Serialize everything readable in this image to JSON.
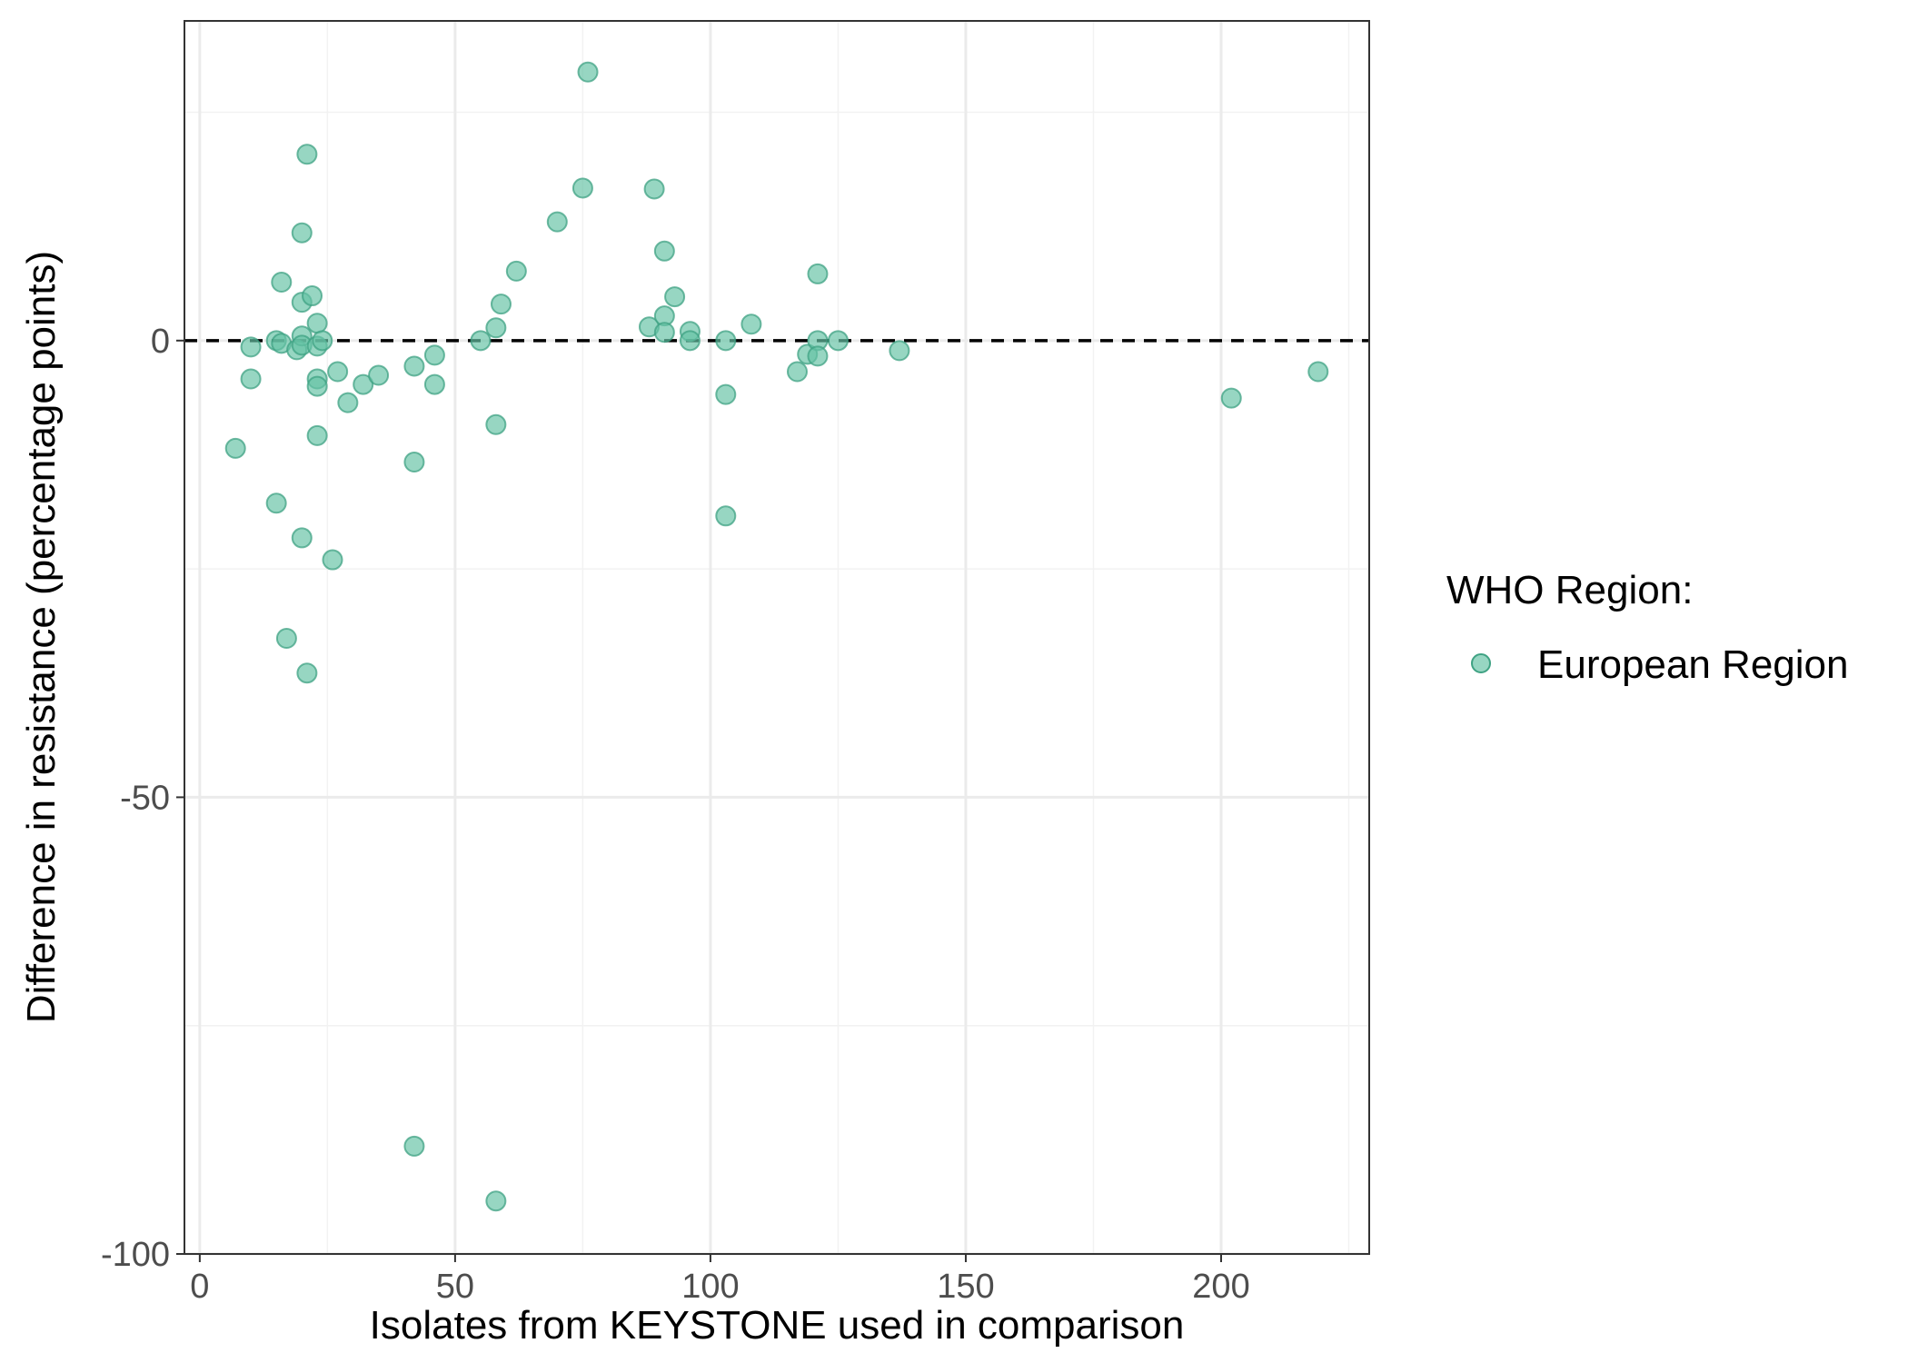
{
  "chart_data": {
    "type": "scatter",
    "xlabel": "Isolates from KEYSTONE used in comparison",
    "ylabel": "Difference in resistance (percentage points)",
    "xlim": [
      -3,
      229
    ],
    "ylim": [
      -100,
      35
    ],
    "x_ticks": [
      0,
      50,
      100,
      150,
      200
    ],
    "y_ticks": [
      0,
      -50,
      -100
    ],
    "x_tick_labels": [
      "0",
      "50",
      "100",
      "150",
      "200"
    ],
    "y_tick_labels": [
      "0",
      "-50",
      "-100"
    ],
    "reference_line": {
      "y": 0,
      "style": "dashed",
      "color": "#000000"
    },
    "grid": true,
    "legend": {
      "title": "WHO Region:",
      "position": "right",
      "entries": [
        {
          "label": "European Region",
          "color": "#66c2a5"
        }
      ]
    },
    "series": [
      {
        "name": "European Region",
        "color": "#66c2a5",
        "points": [
          [
            7,
            -11.8
          ],
          [
            10,
            -0.7
          ],
          [
            10,
            -4.2
          ],
          [
            15,
            -17.8
          ],
          [
            15,
            0
          ],
          [
            16,
            6.4
          ],
          [
            16,
            -0.3
          ],
          [
            17,
            -32.6
          ],
          [
            19,
            -1
          ],
          [
            20,
            11.8
          ],
          [
            20,
            4.2
          ],
          [
            20,
            0.5
          ],
          [
            20,
            -0.5
          ],
          [
            20,
            -21.6
          ],
          [
            21,
            20.4
          ],
          [
            21,
            -36.4
          ],
          [
            22,
            4.9
          ],
          [
            23,
            1.9
          ],
          [
            23,
            -0.6
          ],
          [
            23,
            -4.2
          ],
          [
            23,
            -5
          ],
          [
            23,
            -10.4
          ],
          [
            24,
            0
          ],
          [
            26,
            -24
          ],
          [
            27,
            -3.4
          ],
          [
            29,
            -6.8
          ],
          [
            32,
            -4.8
          ],
          [
            35,
            -3.8
          ],
          [
            42,
            -2.8
          ],
          [
            42,
            -13.3
          ],
          [
            42,
            -88.2
          ],
          [
            46,
            -1.6
          ],
          [
            46,
            -4.8
          ],
          [
            55,
            0
          ],
          [
            58,
            1.4
          ],
          [
            58,
            -9.2
          ],
          [
            58,
            -94.2
          ],
          [
            59,
            4
          ],
          [
            62,
            7.6
          ],
          [
            70,
            13
          ],
          [
            75,
            16.7
          ],
          [
            76,
            29.4
          ],
          [
            88,
            1.5
          ],
          [
            89,
            16.6
          ],
          [
            91,
            2.7
          ],
          [
            91,
            0.9
          ],
          [
            91,
            9.8
          ],
          [
            93,
            4.8
          ],
          [
            96,
            1
          ],
          [
            96,
            0
          ],
          [
            103,
            0
          ],
          [
            103,
            -5.9
          ],
          [
            103,
            -19.2
          ],
          [
            108,
            1.8
          ],
          [
            117,
            -3.4
          ],
          [
            119,
            -1.5
          ],
          [
            121,
            7.3
          ],
          [
            121,
            0
          ],
          [
            121,
            -1.7
          ],
          [
            125,
            0
          ],
          [
            137,
            -1.1
          ],
          [
            202,
            -6.3
          ],
          [
            219,
            -3.4
          ]
        ]
      }
    ]
  }
}
